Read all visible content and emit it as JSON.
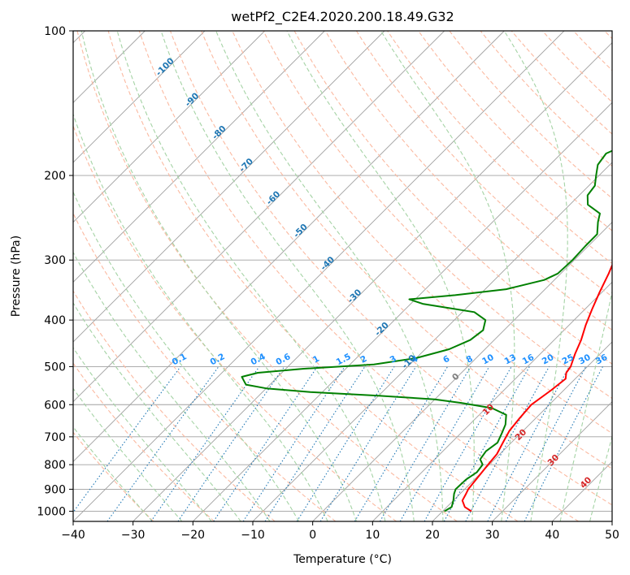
{
  "chart_data": {
    "type": "line",
    "title": "wetPf2_C2E4.2020.200.18.49.G32",
    "xlabel": "Temperature (°C)",
    "ylabel": "Pressure (hPa)",
    "xlim": [
      -40,
      50
    ],
    "ylim": [
      1050,
      100
    ],
    "y_scale": "log",
    "x_ticks": [
      -40,
      -30,
      -20,
      -10,
      0,
      10,
      20,
      30,
      40,
      50
    ],
    "x_tick_labels": [
      "−40",
      "−30",
      "−20",
      "−10",
      "0",
      "10",
      "20",
      "30",
      "40",
      "50"
    ],
    "y_ticks": [
      100,
      200,
      300,
      400,
      500,
      600,
      700,
      800,
      900,
      1000
    ],
    "y_tick_labels": [
      "100",
      "200",
      "300",
      "400",
      "500",
      "600",
      "700",
      "800",
      "900",
      "1000"
    ],
    "grid": true,
    "series": [
      {
        "color": "#ff0000",
        "points": [
          [
            1000,
            24.8
          ],
          [
            980,
            23.0
          ],
          [
            950,
            21.5
          ],
          [
            920,
            21.0
          ],
          [
            900,
            20.6
          ],
          [
            850,
            20.2
          ],
          [
            800,
            19.8
          ],
          [
            760,
            19.5
          ],
          [
            720,
            18.6
          ],
          [
            680,
            17.7
          ],
          [
            640,
            17.3
          ],
          [
            600,
            17.0
          ],
          [
            560,
            17.9
          ],
          [
            530,
            18.4
          ],
          [
            515,
            17.5
          ],
          [
            500,
            17.2
          ],
          [
            470,
            15.8
          ],
          [
            440,
            14.5
          ],
          [
            410,
            12.8
          ],
          [
            380,
            11.2
          ],
          [
            350,
            9.6
          ],
          [
            320,
            8.0
          ],
          [
            300,
            6.7
          ],
          [
            280,
            4.8
          ],
          [
            260,
            3.0
          ],
          [
            245,
            2.6
          ],
          [
            230,
            2.5
          ],
          [
            210,
            2.4
          ],
          [
            190,
            2.5
          ],
          [
            170,
            3.0
          ],
          [
            155,
            3.3
          ],
          [
            140,
            4.3
          ],
          [
            130,
            5.7
          ],
          [
            120,
            6.7
          ],
          [
            110,
            9.2
          ],
          [
            105,
            11.9
          ],
          [
            100,
            14.7
          ]
        ]
      },
      {
        "color": "#008000",
        "points": [
          [
            1000,
            20.3
          ],
          [
            980,
            20.8
          ],
          [
            950,
            20.0
          ],
          [
            920,
            19.0
          ],
          [
            900,
            18.5
          ],
          [
            860,
            18.6
          ],
          [
            830,
            19.2
          ],
          [
            800,
            18.9
          ],
          [
            780,
            17.6
          ],
          [
            750,
            17.2
          ],
          [
            720,
            17.7
          ],
          [
            690,
            16.9
          ],
          [
            660,
            16.0
          ],
          [
            630,
            14.5
          ],
          [
            610,
            11.0
          ],
          [
            595,
            5.0
          ],
          [
            585,
            0.0
          ],
          [
            575,
            -10.0
          ],
          [
            565,
            -22.0
          ],
          [
            555,
            -30.0
          ],
          [
            545,
            -34.0
          ],
          [
            535,
            -35.0
          ],
          [
            525,
            -36.0
          ],
          [
            515,
            -34.0
          ],
          [
            505,
            -27.0
          ],
          [
            495,
            -16.0
          ],
          [
            480,
            -10.0
          ],
          [
            460,
            -6.0
          ],
          [
            440,
            -4.0
          ],
          [
            420,
            -3.5
          ],
          [
            400,
            -4.8
          ],
          [
            385,
            -8.0
          ],
          [
            370,
            -18.0
          ],
          [
            362,
            -21.0
          ],
          [
            355,
            -14.0
          ],
          [
            345,
            -6.5
          ],
          [
            330,
            -1.7
          ],
          [
            320,
            -0.5
          ],
          [
            300,
            -0.3
          ],
          [
            280,
            -0.5
          ],
          [
            265,
            -0.5
          ],
          [
            250,
            -2.4
          ],
          [
            240,
            -3.5
          ],
          [
            230,
            -7.0
          ],
          [
            220,
            -8.6
          ],
          [
            210,
            -9.0
          ],
          [
            200,
            -10.5
          ],
          [
            190,
            -12.0
          ],
          [
            180,
            -12.5
          ],
          [
            170,
            -10.0
          ],
          [
            160,
            -8.0
          ],
          [
            150,
            -6.5
          ],
          [
            140,
            -5.5
          ],
          [
            130,
            -6.0
          ],
          [
            125,
            -4.5
          ],
          [
            120,
            -2.0
          ],
          [
            115,
            0.8
          ],
          [
            110,
            1.8
          ],
          [
            105,
            0.7
          ],
          [
            100,
            0.0
          ]
        ]
      }
    ],
    "mixing_ratio_labels": [
      "0.1",
      "0.2",
      "0.4",
      "0.6",
      "1",
      "1.5",
      "2",
      "3",
      "4",
      "6",
      "8",
      "10",
      "13",
      "16",
      "20",
      "25",
      "30",
      "36"
    ],
    "dry_adiabat_labels": [
      "-100",
      "-90",
      "-80",
      "-70",
      "-60",
      "-50",
      "-40",
      "-30",
      "-20",
      "-10"
    ],
    "moist_adiabat_labels": [
      "0",
      "10",
      "20",
      "30",
      "40"
    ],
    "colors": {
      "temperature": "#ff0000",
      "dewpoint": "#008000",
      "dry_adiabat": "#fbb9a0",
      "moist_adiabat": "#a5d3a5",
      "mixing_ratio": "#1f77b4",
      "isotherm": "#a0a0a0",
      "mixing_label": "#1e90ff",
      "dry_label": "#1f77b4",
      "moist_label": "#d62728",
      "zero_label": "#7f7f7f"
    }
  }
}
